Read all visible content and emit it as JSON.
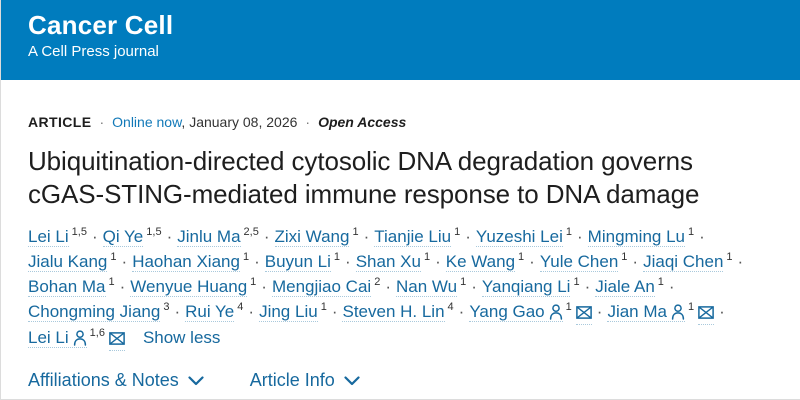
{
  "header": {
    "journal_name": "Cancer Cell",
    "tagline": "A Cell Press journal",
    "bg_color": "#007cbe"
  },
  "meta": {
    "article_type": "ARTICLE",
    "separator": "·",
    "online_status": "Online now",
    "date_suffix": ", January 08, 2026",
    "open_access": "Open Access"
  },
  "title_full": "Ubiquitination-directed cytosolic DNA degradation governs cGAS-STING-mediated immune response to DNA damage",
  "title_lines": [
    "Ubiquitination-directed cytosolic DNA degradation governs",
    "cGAS-STING-mediated immune response to DNA damage"
  ],
  "authors": {
    "separator": "·",
    "show_less_label": "Show less",
    "list": [
      {
        "name": "Lei Li",
        "sup": "1,5"
      },
      {
        "name": "Qi Ye",
        "sup": "1,5"
      },
      {
        "name": "Jinlu Ma",
        "sup": "2,5"
      },
      {
        "name": "Zixi Wang",
        "sup": "1"
      },
      {
        "name": "Tianjie Liu",
        "sup": "1"
      },
      {
        "name": "Yuzeshi Lei",
        "sup": "1"
      },
      {
        "name": "Mingming Lu",
        "sup": "1",
        "break_after": true
      },
      {
        "name": "Jialu Kang",
        "sup": "1"
      },
      {
        "name": "Haohan Xiang",
        "sup": "1"
      },
      {
        "name": "Buyun Li",
        "sup": "1"
      },
      {
        "name": "Shan Xu",
        "sup": "1"
      },
      {
        "name": "Ke Wang",
        "sup": "1"
      },
      {
        "name": "Yule Chen",
        "sup": "1"
      },
      {
        "name": "Jiaqi Chen",
        "sup": "1",
        "break_after": true
      },
      {
        "name": "Bohan Ma",
        "sup": "1"
      },
      {
        "name": "Wenyue Huang",
        "sup": "1"
      },
      {
        "name": "Mengjiao Cai",
        "sup": "2"
      },
      {
        "name": "Nan Wu",
        "sup": "1"
      },
      {
        "name": "Yanqiang Li",
        "sup": "1"
      },
      {
        "name": "Jiale An",
        "sup": "1",
        "break_after": true
      },
      {
        "name": "Chongming Jiang",
        "sup": "3"
      },
      {
        "name": "Rui Ye",
        "sup": "4"
      },
      {
        "name": "Jing Liu",
        "sup": "1"
      },
      {
        "name": "Steven H. Lin",
        "sup": "4"
      },
      {
        "name": "Yang Gao",
        "sup": "1",
        "person": true,
        "mail": true
      },
      {
        "name": "Jian Ma",
        "sup": "1",
        "person": true,
        "mail": true,
        "break_after": true
      },
      {
        "name": "Lei Li",
        "sup": "1,6",
        "person": true,
        "mail": true
      }
    ]
  },
  "footer": {
    "links": [
      {
        "label": "Affiliations & Notes"
      },
      {
        "label": "Article Info"
      }
    ]
  },
  "icons": {
    "person": "person-icon",
    "mail": "envelope-icon",
    "chevron": "chevron-down-icon"
  },
  "colors": {
    "header_bg": "#007cbe",
    "online_link": "#1279b8",
    "author_link": "#17699e",
    "title_text": "#1e1e1e",
    "underline": "#a9c9dc"
  }
}
